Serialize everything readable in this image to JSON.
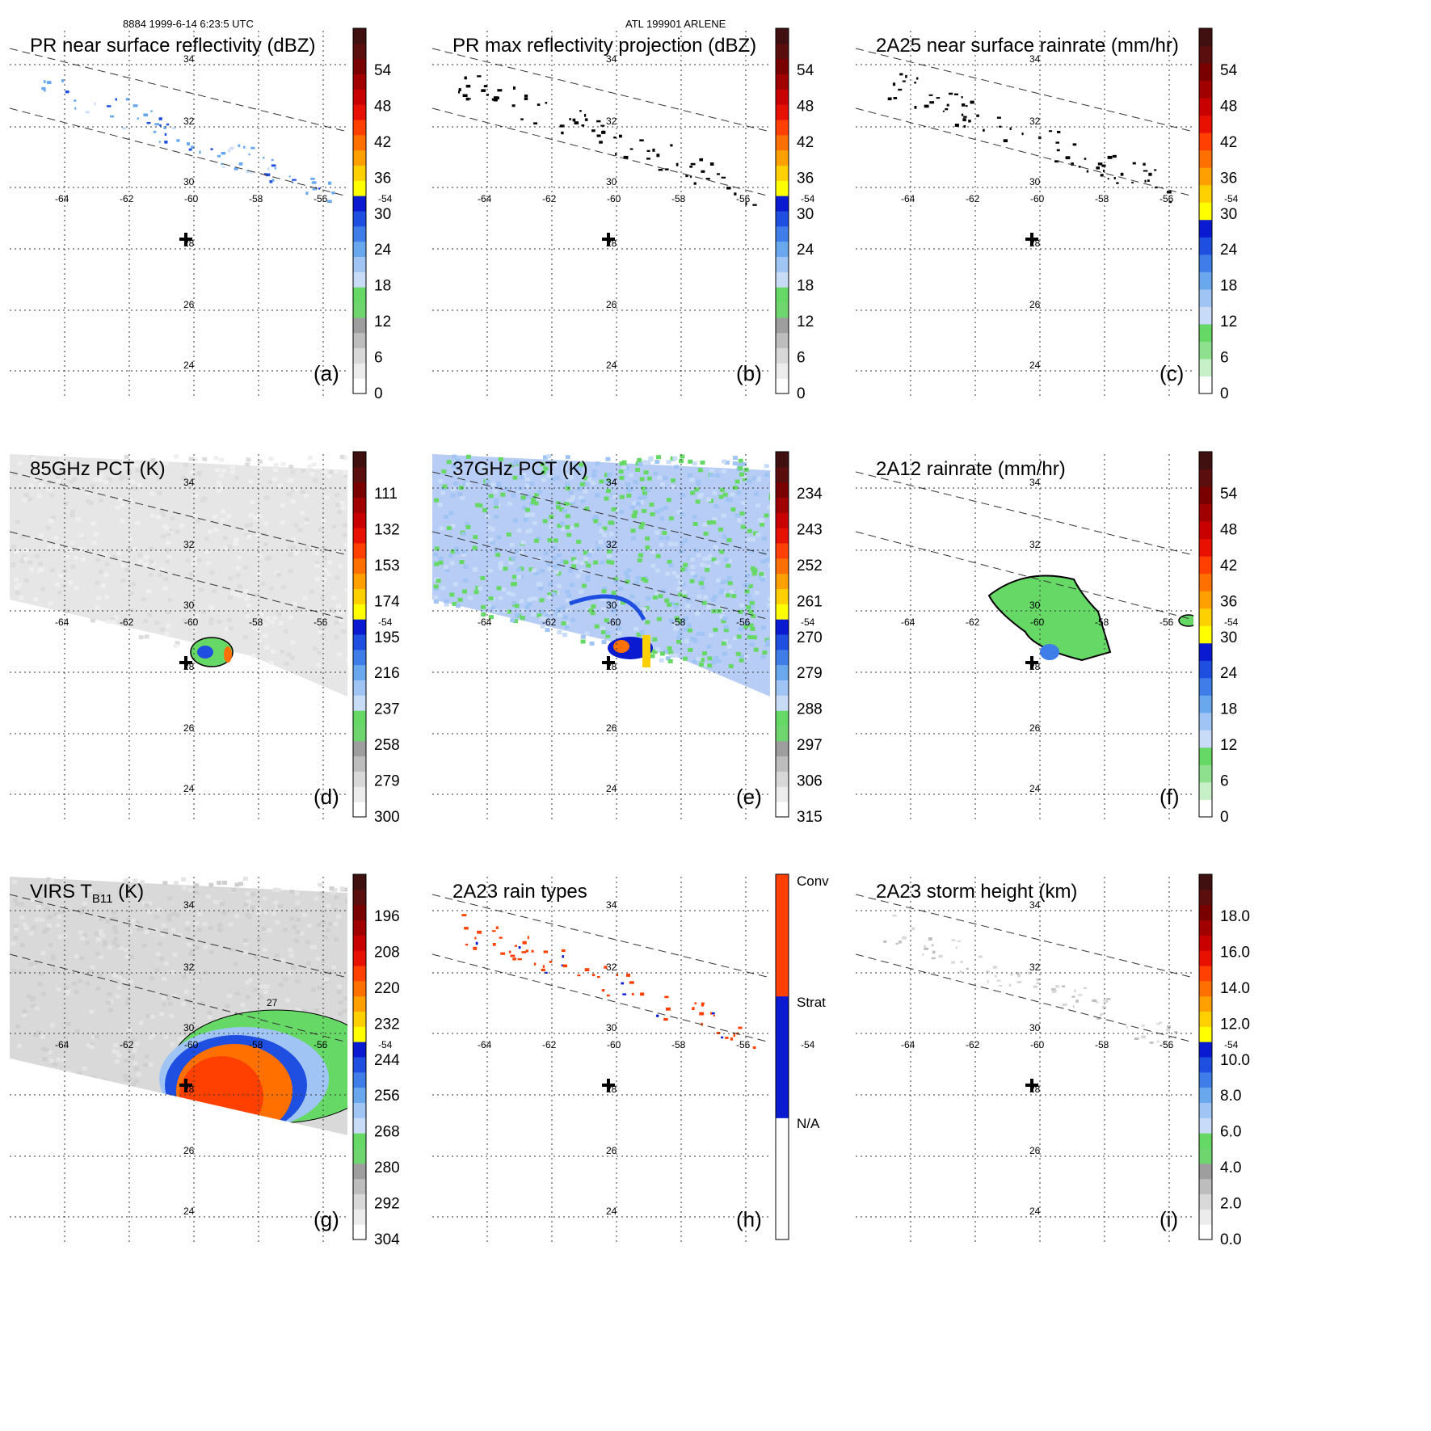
{
  "header": {
    "orbit_time": "8884 1999-6-14 6:23:5 UTC",
    "storm": "ATL 199901 ARLENE"
  },
  "grid": {
    "lat_labels": [
      "34",
      "32",
      "30",
      "28",
      "26",
      "24"
    ],
    "lon_labels": [
      "-64",
      "-62",
      "-60",
      "-58",
      "-56",
      "-54"
    ]
  },
  "panels": [
    {
      "id": "a",
      "title": "PR near surface reflectivity (dBZ)",
      "label": "(a)",
      "colorbar_ticks": [
        "54",
        "48",
        "42",
        "36",
        "30",
        "24",
        "18",
        "12",
        "6",
        "0"
      ],
      "colorbar_colors": [
        "#ffffff",
        "#ececec",
        "#d8d8d8",
        "#bdbdbd",
        "#9e9e9e",
        "#6fd66f",
        "#66d866",
        "#c8dcf8",
        "#a0c4f4",
        "#6aa8ee",
        "#3f7ee8",
        "#1f4fe0",
        "#0a1ad0",
        "#ffff00",
        "#ffd000",
        "#ffa000",
        "#ff7000",
        "#ff4000",
        "#e81000",
        "#c80000",
        "#a00000",
        "#7a0000",
        "#5a0e0e",
        "#401010"
      ],
      "field": "reflectivity",
      "swath": "pr",
      "background": "none"
    },
    {
      "id": "b",
      "title": "PR max reflectivity projection (dBZ)",
      "label": "(b)",
      "colorbar_ticks": [
        "54",
        "48",
        "42",
        "36",
        "30",
        "24",
        "18",
        "12",
        "6",
        "0"
      ],
      "colorbar_colors": [
        "#ffffff",
        "#ececec",
        "#d8d8d8",
        "#bdbdbd",
        "#9e9e9e",
        "#6fd66f",
        "#66d866",
        "#c8dcf8",
        "#a0c4f4",
        "#6aa8ee",
        "#3f7ee8",
        "#1f4fe0",
        "#0a1ad0",
        "#ffff00",
        "#ffd000",
        "#ffa000",
        "#ff7000",
        "#ff4000",
        "#e81000",
        "#c80000",
        "#a00000",
        "#7a0000",
        "#5a0e0e",
        "#401010"
      ],
      "field": "black-dots",
      "swath": "pr",
      "background": "none"
    },
    {
      "id": "c",
      "title": "2A25 near surface rainrate (mm/hr)",
      "label": "(c)",
      "colorbar_ticks": [
        "54",
        "48",
        "42",
        "36",
        "30",
        "24",
        "18",
        "12",
        "6",
        "0"
      ],
      "colorbar_colors": [
        "#ffffff",
        "#c8f0c8",
        "#8ee08e",
        "#66d866",
        "#c8dcf8",
        "#a0c4f4",
        "#6aa8ee",
        "#3f7ee8",
        "#1f4fe0",
        "#0a1ad0",
        "#ffff00",
        "#ffd000",
        "#ffa000",
        "#ff7000",
        "#ff4000",
        "#e81000",
        "#c80000",
        "#a00000",
        "#7a0000",
        "#5a0e0e",
        "#401010"
      ],
      "field": "black-dots",
      "swath": "pr",
      "background": "none"
    },
    {
      "id": "d",
      "title": "85GHz PCT (K)",
      "label": "(d)",
      "colorbar_ticks": [
        "111",
        "132",
        "153",
        "174",
        "195",
        "216",
        "237",
        "258",
        "279",
        "300"
      ],
      "colorbar_colors": [
        "#ffffff",
        "#ececec",
        "#d8d8d8",
        "#bdbdbd",
        "#9e9e9e",
        "#6fd66f",
        "#66d866",
        "#c8dcf8",
        "#a0c4f4",
        "#6aa8ee",
        "#3f7ee8",
        "#1f4fe0",
        "#0a1ad0",
        "#ffff00",
        "#ffd000",
        "#ffa000",
        "#ff7000",
        "#ff4000",
        "#e81000",
        "#c80000",
        "#a00000",
        "#7a0000",
        "#5a0e0e",
        "#401010"
      ],
      "field": "pct85",
      "swath": "tmi",
      "background": "#e6e6e6"
    },
    {
      "id": "e",
      "title": "37GHz PCT (K)",
      "label": "(e)",
      "colorbar_ticks": [
        "234",
        "243",
        "252",
        "261",
        "270",
        "279",
        "288",
        "297",
        "306",
        "315"
      ],
      "colorbar_colors": [
        "#ffffff",
        "#ececec",
        "#d8d8d8",
        "#bdbdbd",
        "#9e9e9e",
        "#6fd66f",
        "#66d866",
        "#c8dcf8",
        "#a0c4f4",
        "#6aa8ee",
        "#3f7ee8",
        "#1f4fe0",
        "#0a1ad0",
        "#ffff00",
        "#ffd000",
        "#ffa000",
        "#ff7000",
        "#ff4000",
        "#e81000",
        "#c80000",
        "#a00000",
        "#7a0000",
        "#5a0e0e",
        "#401010"
      ],
      "field": "pct37",
      "swath": "tmi",
      "background": "#b7cdf5"
    },
    {
      "id": "f",
      "title": "2A12 rainrate (mm/hr)",
      "label": "(f)",
      "colorbar_ticks": [
        "54",
        "48",
        "42",
        "36",
        "30",
        "24",
        "18",
        "12",
        "6",
        "0"
      ],
      "colorbar_colors": [
        "#ffffff",
        "#c8f0c8",
        "#8ee08e",
        "#66d866",
        "#c8dcf8",
        "#a0c4f4",
        "#6aa8ee",
        "#3f7ee8",
        "#1f4fe0",
        "#0a1ad0",
        "#ffff00",
        "#ffd000",
        "#ffa000",
        "#ff7000",
        "#ff4000",
        "#e81000",
        "#c80000",
        "#a00000",
        "#7a0000",
        "#5a0e0e",
        "#401010"
      ],
      "field": "rain2a12",
      "swath": "none",
      "background": "none"
    },
    {
      "id": "g",
      "title": "VIRS T",
      "title_sub": "B11",
      "title_suffix": " (K)",
      "label": "(g)",
      "colorbar_ticks": [
        "196",
        "208",
        "220",
        "232",
        "244",
        "256",
        "268",
        "280",
        "292",
        "304"
      ],
      "colorbar_colors": [
        "#ffffff",
        "#ececec",
        "#d8d8d8",
        "#bdbdbd",
        "#9e9e9e",
        "#6fd66f",
        "#66d866",
        "#c8dcf8",
        "#a0c4f4",
        "#6aa8ee",
        "#3f7ee8",
        "#1f4fe0",
        "#0a1ad0",
        "#ffff00",
        "#ffd000",
        "#ffa000",
        "#ff7000",
        "#ff4000",
        "#e81000",
        "#c80000",
        "#a00000",
        "#7a0000",
        "#5a0e0e",
        "#401010"
      ],
      "field": "virs",
      "swath": "virs",
      "background": "#d9d9d9"
    },
    {
      "id": "h",
      "title": "2A23 rain types",
      "label": "(h)",
      "colorbar_ticks": [
        "Conv",
        "Strat",
        "N/A"
      ],
      "colorbar_colors": [
        "#ffffff",
        "#0a1ad0",
        "#ff4000"
      ],
      "field": "raintype",
      "swath": "pr",
      "background": "none"
    },
    {
      "id": "i",
      "title": "2A23 storm height (km)",
      "label": "(i)",
      "colorbar_ticks": [
        "18.0",
        "16.0",
        "14.0",
        "12.0",
        "10.0",
        "8.0",
        "6.0",
        "4.0",
        "2.0",
        "0.0"
      ],
      "colorbar_colors": [
        "#ffffff",
        "#ececec",
        "#d8d8d8",
        "#bdbdbd",
        "#9e9e9e",
        "#6fd66f",
        "#66d866",
        "#c8dcf8",
        "#a0c4f4",
        "#6aa8ee",
        "#3f7ee8",
        "#1f4fe0",
        "#0a1ad0",
        "#ffff00",
        "#ffd000",
        "#ffa000",
        "#ff7000",
        "#ff4000",
        "#e81000",
        "#c80000",
        "#a00000",
        "#7a0000",
        "#5a0e0e",
        "#401010"
      ],
      "field": "height",
      "swath": "pr",
      "background": "none"
    }
  ],
  "contour_label": "27",
  "colors": {
    "conv": "#ff4000",
    "strat": "#0a1ad0",
    "green": "#66d866",
    "grid": "#333333"
  }
}
